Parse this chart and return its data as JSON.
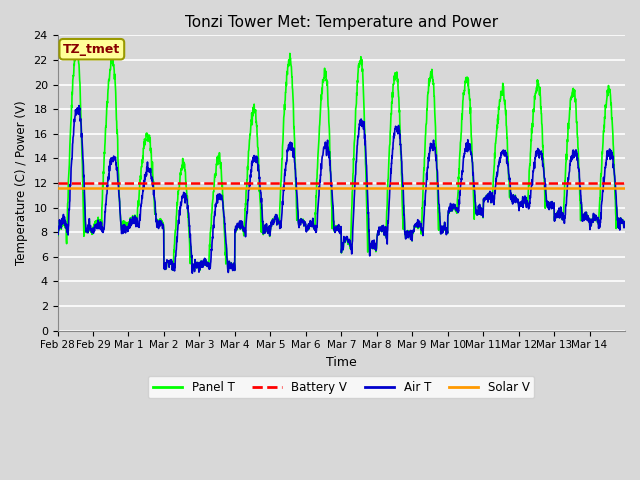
{
  "title": "Tonzi Tower Met: Temperature and Power",
  "xlabel": "Time",
  "ylabel": "Temperature (C) / Power (V)",
  "ylim": [
    0,
    24
  ],
  "yticks": [
    0,
    2,
    4,
    6,
    8,
    10,
    12,
    14,
    16,
    18,
    20,
    22,
    24
  ],
  "xtick_labels": [
    "Feb 28",
    "Feb 29",
    "Mar 1",
    "Mar 2",
    "Mar 3",
    "Mar 4",
    "Mar 5",
    "Mar 6",
    "Mar 7",
    "Mar 8",
    "Mar 9",
    "Mar 10",
    "Mar 11",
    "Mar 12",
    "Mar 13",
    "Mar 14"
  ],
  "bg_color": "#d8d8d8",
  "plot_bg_color": "#d8d8d8",
  "grid_color": "#ffffff",
  "battery_v": 12.0,
  "solar_v": 11.6,
  "panel_t_color": "#00ff00",
  "battery_v_color": "#ff0000",
  "air_t_color": "#0000cc",
  "solar_v_color": "#ff9900",
  "line_width": 1.2,
  "annotation_text": "TZ_tmet",
  "annotation_color": "#880000",
  "annotation_bg": "#ffff99",
  "annotation_border": "#999900"
}
